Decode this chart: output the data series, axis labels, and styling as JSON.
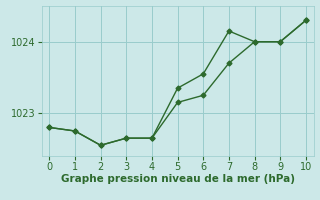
{
  "series1_x": [
    0,
    1,
    2,
    3,
    4,
    5,
    6,
    7,
    8,
    9,
    10
  ],
  "series1_y": [
    1022.8,
    1022.75,
    1022.55,
    1022.65,
    1022.65,
    1023.15,
    1023.25,
    1023.7,
    1024.0,
    1024.0,
    1024.3
  ],
  "series2_x": [
    0,
    1,
    2,
    3,
    4,
    5,
    6,
    7,
    8,
    9,
    10
  ],
  "series2_y": [
    1022.8,
    1022.75,
    1022.55,
    1022.65,
    1022.65,
    1023.35,
    1023.55,
    1024.15,
    1024.0,
    1024.0,
    1024.3
  ],
  "line_color": "#2d6a2d",
  "bg_color": "#cce8e8",
  "grid_color": "#99cccc",
  "xlabel": "Graphe pression niveau de la mer (hPa)",
  "xlabel_color": "#2d6a2d",
  "xlabel_fontsize": 7.5,
  "tick_color": "#2d6a2d",
  "tick_fontsize": 7,
  "ylim": [
    1022.4,
    1024.5
  ],
  "yticks": [
    1023,
    1024
  ],
  "xticks": [
    0,
    1,
    2,
    3,
    4,
    5,
    6,
    7,
    8,
    9,
    10
  ],
  "marker": "D",
  "marker_size": 2.5,
  "linewidth": 1.0
}
